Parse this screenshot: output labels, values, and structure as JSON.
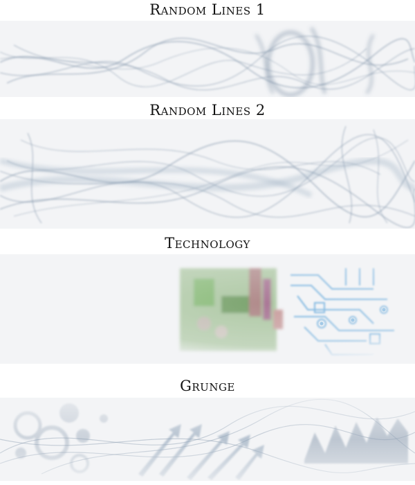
{
  "sections": [
    {
      "title": "Random Lines 1"
    },
    {
      "title": "Random Lines 2"
    },
    {
      "title": "Technology"
    },
    {
      "title": "Grunge"
    }
  ],
  "colors": {
    "page_background": "#ffffff",
    "panel_background": "#f3f4f6",
    "line_color": "#7f93a8",
    "circuit_blue": "#4f9ed8",
    "circuit_green": "#6fae5a"
  }
}
